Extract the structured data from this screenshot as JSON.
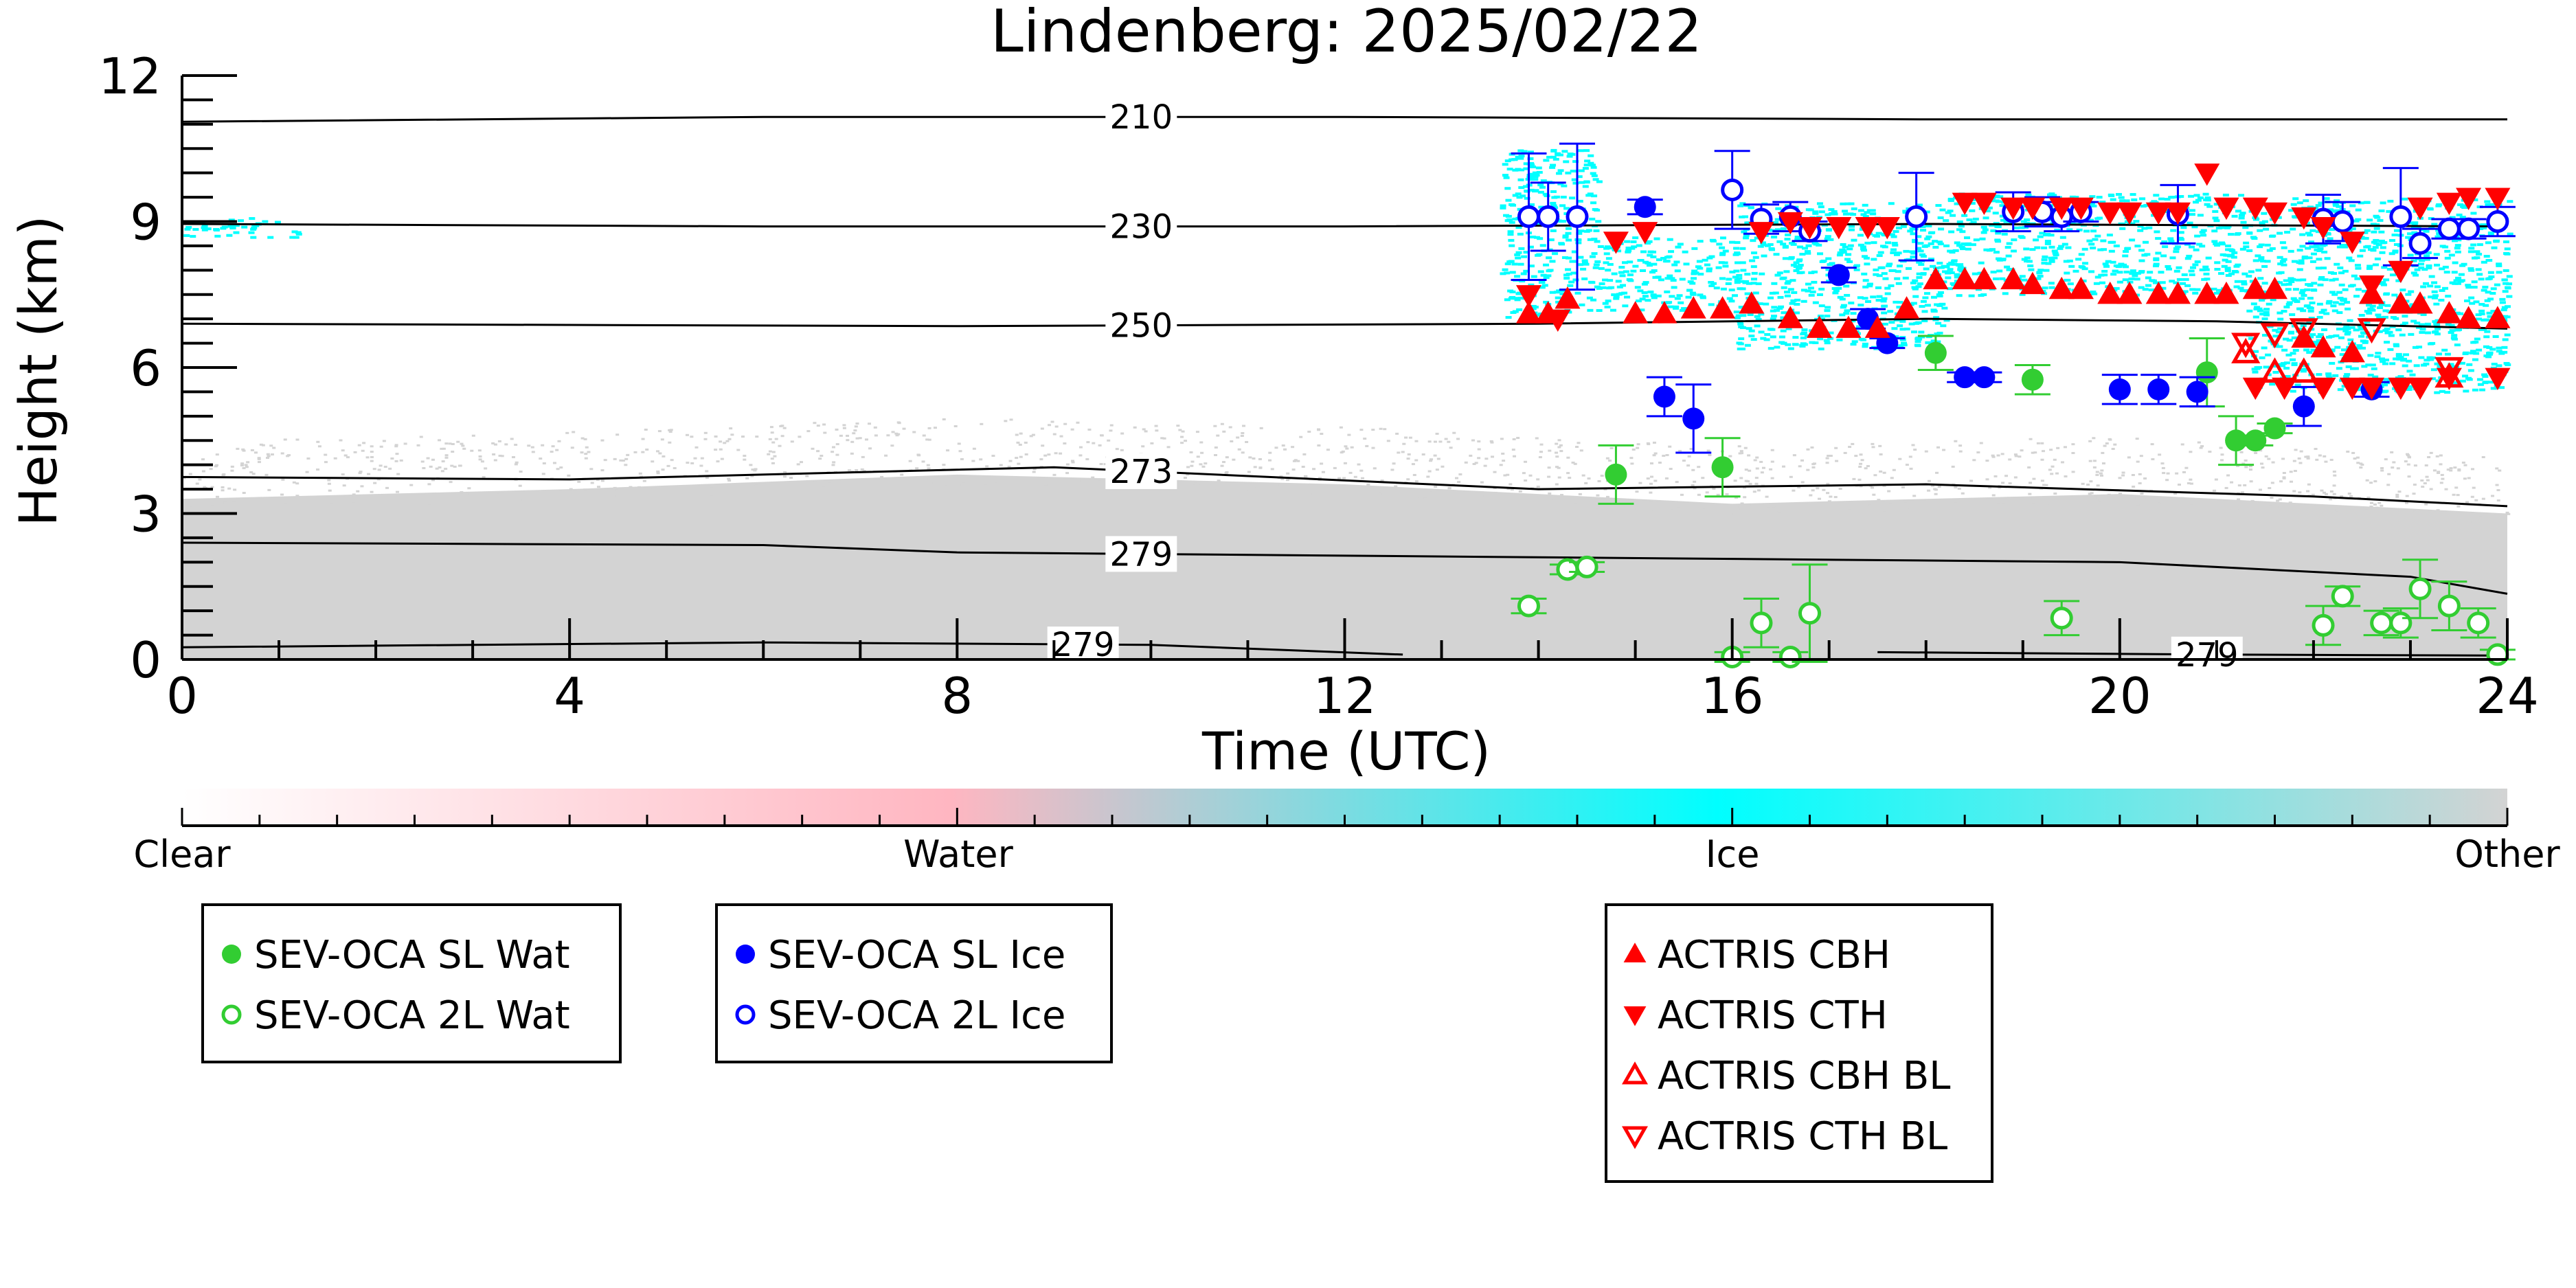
{
  "chart_data": {
    "type": "scatter",
    "title": "Lindenberg: 2025/02/22",
    "xlabel": "Time (UTC)",
    "ylabel": "Height (km)",
    "xlim": [
      0,
      24
    ],
    "ylim": [
      0,
      12
    ],
    "xticks": [
      "0",
      "4",
      "8",
      "12",
      "16",
      "20",
      "24"
    ],
    "yticks": [
      "0",
      "3",
      "6",
      "9",
      "12"
    ],
    "grid": false,
    "background_classes": [
      {
        "name": "Clear",
        "color": "#ffffff"
      },
      {
        "name": "Water",
        "color": "#ffb6c1"
      },
      {
        "name": "Ice",
        "color": "#00ffff"
      },
      {
        "name": "Other",
        "color": "#d3d3d3"
      }
    ],
    "other_field": {
      "description_free": true,
      "top_km": [
        [
          0,
          3.3
        ],
        [
          4,
          3.5
        ],
        [
          8,
          3.8
        ],
        [
          12,
          3.6
        ],
        [
          16,
          3.2
        ],
        [
          20,
          3.4
        ],
        [
          24,
          3.0
        ]
      ]
    },
    "ice_regions": [
      {
        "x0": 0.0,
        "x1": 1.2,
        "y0": 8.7,
        "y1": 9.1
      },
      {
        "x0": 13.6,
        "x1": 14.6,
        "y0": 7.0,
        "y1": 10.5
      },
      {
        "x0": 14.6,
        "x1": 16.0,
        "y0": 7.2,
        "y1": 8.7
      },
      {
        "x0": 16.0,
        "x1": 18.2,
        "y0": 6.4,
        "y1": 9.4
      },
      {
        "x0": 18.2,
        "x1": 21.3,
        "y0": 7.5,
        "y1": 9.6
      },
      {
        "x0": 21.3,
        "x1": 24.0,
        "y0": 5.5,
        "y1": 9.5
      }
    ],
    "contours": [
      {
        "label": "210",
        "label_x": 9.9,
        "points": [
          [
            0,
            11.05
          ],
          [
            6,
            11.15
          ],
          [
            12,
            11.15
          ],
          [
            18,
            11.1
          ],
          [
            24,
            11.1
          ]
        ]
      },
      {
        "label": "230",
        "label_x": 9.9,
        "points": [
          [
            0,
            8.95
          ],
          [
            6,
            8.9
          ],
          [
            12,
            8.9
          ],
          [
            18,
            8.95
          ],
          [
            24,
            8.9
          ]
        ]
      },
      {
        "label": "250",
        "label_x": 9.9,
        "points": [
          [
            0,
            6.9
          ],
          [
            8,
            6.85
          ],
          [
            14,
            6.9
          ],
          [
            18,
            7.0
          ],
          [
            21,
            6.95
          ],
          [
            24,
            6.8
          ]
        ]
      },
      {
        "label": "273",
        "label_x": 9.9,
        "points": [
          [
            0,
            3.75
          ],
          [
            4,
            3.7
          ],
          [
            9,
            3.95
          ],
          [
            14,
            3.5
          ],
          [
            18,
            3.6
          ],
          [
            22,
            3.35
          ],
          [
            24,
            3.15
          ]
        ]
      },
      {
        "label": "279",
        "label_x": 9.9,
        "points": [
          [
            0,
            2.4
          ],
          [
            6,
            2.35
          ],
          [
            8,
            2.2
          ],
          [
            14,
            2.1
          ],
          [
            20,
            2.0
          ],
          [
            23,
            1.7
          ],
          [
            24,
            1.35
          ]
        ]
      },
      {
        "label": "279",
        "label_x": 9.3,
        "points": [
          [
            0,
            0.25
          ],
          [
            6,
            0.35
          ],
          [
            10,
            0.3
          ],
          [
            12.6,
            0.1
          ]
        ]
      },
      {
        "label": "279",
        "label_x": 20.9,
        "points": [
          [
            17.5,
            0.15
          ],
          [
            21,
            0.1
          ],
          [
            24,
            0.08
          ]
        ]
      }
    ],
    "series": [
      {
        "name": "SEV-OCA SL Wat",
        "color": "#32cd32",
        "marker": "circle-filled",
        "x": [
          14.8,
          15.9,
          18.1,
          19.1,
          20.9,
          21.2,
          21.4,
          21.6
        ],
        "y": [
          3.8,
          3.95,
          6.3,
          5.75,
          5.9,
          4.5,
          4.5,
          4.75
        ],
        "yerr": [
          0.6,
          0.6,
          0.35,
          0.3,
          0.7,
          0.5,
          0.1,
          0.1
        ]
      },
      {
        "name": "SEV-OCA 2L Wat",
        "color": "#32cd32",
        "marker": "circle-open",
        "x": [
          13.9,
          14.3,
          14.5,
          16.0,
          16.3,
          16.6,
          16.8,
          19.4,
          22.1,
          22.3,
          22.7,
          22.9,
          23.1,
          23.4,
          23.7,
          23.9
        ],
        "y": [
          1.1,
          1.85,
          1.9,
          0.05,
          0.75,
          0.05,
          0.95,
          0.85,
          0.7,
          1.3,
          0.75,
          0.75,
          1.45,
          1.1,
          0.75,
          0.1
        ],
        "yerr": [
          0.15,
          0.1,
          0.1,
          0.1,
          0.5,
          0.1,
          1.0,
          0.35,
          0.4,
          0.2,
          0.25,
          0.3,
          0.6,
          0.5,
          0.3,
          0.1
        ]
      },
      {
        "name": "SEV-OCA SL Ice",
        "color": "#0000ff",
        "marker": "circle-filled",
        "x": [
          15.1,
          15.3,
          15.6,
          17.1,
          17.4,
          17.6,
          18.4,
          18.6,
          20.0,
          20.4,
          20.8,
          21.9,
          22.6
        ],
        "y": [
          9.3,
          5.4,
          4.95,
          7.9,
          7.0,
          6.5,
          5.8,
          5.8,
          5.55,
          5.55,
          5.5,
          5.2,
          5.55
        ],
        "yerr": [
          0.15,
          0.4,
          0.7,
          0.15,
          0.2,
          0.1,
          0.1,
          0.1,
          0.3,
          0.3,
          0.3,
          0.4,
          0.15
        ]
      },
      {
        "name": "SEV-OCA 2L Ice",
        "color": "#0000ff",
        "marker": "circle-open",
        "x": [
          13.9,
          14.1,
          14.4,
          16.0,
          16.3,
          16.6,
          16.8,
          17.9,
          18.9,
          19.2,
          19.4,
          19.6,
          20.6,
          22.1,
          22.3,
          22.9,
          23.1,
          23.4,
          23.6,
          23.9
        ],
        "y": [
          9.1,
          9.1,
          9.1,
          9.65,
          9.05,
          9.1,
          8.8,
          9.1,
          9.2,
          9.2,
          9.1,
          9.2,
          9.15,
          9.05,
          9.0,
          9.1,
          8.55,
          8.85,
          8.85,
          9.0
        ],
        "yerr": [
          1.3,
          0.7,
          1.5,
          0.8,
          0.3,
          0.3,
          0.2,
          0.9,
          0.4,
          0.3,
          0.3,
          0.2,
          0.6,
          0.5,
          0.4,
          1.0,
          0.3,
          0.2,
          0.2,
          0.3
        ]
      },
      {
        "name": "ACTRIS CBH",
        "color": "#ff0000",
        "marker": "triangle-up-filled",
        "x": [
          13.9,
          14.1,
          14.3,
          15.0,
          15.3,
          15.6,
          15.9,
          16.2,
          16.6,
          16.9,
          17.2,
          17.5,
          17.8,
          18.1,
          18.4,
          18.6,
          18.9,
          19.1,
          19.4,
          19.6,
          19.9,
          20.1,
          20.4,
          20.6,
          20.9,
          21.1,
          21.4,
          21.6,
          21.9,
          22.1,
          22.4,
          22.6,
          22.9,
          23.1,
          23.4,
          23.6,
          23.9
        ],
        "y": [
          7.1,
          7.1,
          7.4,
          7.1,
          7.1,
          7.2,
          7.2,
          7.3,
          7.0,
          6.8,
          6.8,
          6.8,
          7.2,
          7.8,
          7.8,
          7.8,
          7.8,
          7.7,
          7.6,
          7.6,
          7.5,
          7.5,
          7.5,
          7.5,
          7.5,
          7.5,
          7.6,
          7.6,
          6.6,
          6.4,
          6.3,
          7.5,
          7.3,
          7.3,
          7.1,
          7.0,
          7.0
        ],
        "yerr": []
      },
      {
        "name": "ACTRIS CTH",
        "color": "#ff0000",
        "marker": "triangle-down-filled",
        "x": [
          13.9,
          14.2,
          14.8,
          15.1,
          16.3,
          16.6,
          16.8,
          17.1,
          17.4,
          17.6,
          18.4,
          18.6,
          18.9,
          19.1,
          19.4,
          19.6,
          19.9,
          20.1,
          20.4,
          20.6,
          20.9,
          21.1,
          21.4,
          21.6,
          21.9,
          22.1,
          22.4,
          22.6,
          22.9,
          23.1,
          23.4,
          23.6,
          23.9,
          21.4,
          21.7,
          22.1,
          22.4,
          22.6,
          22.9,
          23.1,
          23.4,
          23.9
        ],
        "y": [
          7.5,
          7.0,
          8.6,
          8.8,
          8.8,
          9.0,
          8.9,
          8.9,
          8.9,
          8.9,
          9.4,
          9.4,
          9.3,
          9.3,
          9.3,
          9.3,
          9.2,
          9.2,
          9.2,
          9.2,
          10.0,
          9.3,
          9.3,
          9.2,
          9.1,
          8.9,
          8.6,
          7.7,
          8.0,
          9.3,
          9.4,
          9.5,
          9.5,
          5.6,
          5.6,
          5.6,
          5.6,
          5.6,
          5.6,
          5.6,
          5.8,
          5.8
        ],
        "yerr": []
      },
      {
        "name": "ACTRIS CBH BL",
        "color": "#ff0000",
        "marker": "triangle-up-open",
        "x": [
          21.3,
          21.6,
          21.9,
          23.4
        ],
        "y": [
          6.3,
          5.9,
          5.9,
          5.8
        ],
        "yerr": []
      },
      {
        "name": "ACTRIS CTH BL",
        "color": "#ff0000",
        "marker": "triangle-down-open",
        "x": [
          21.3,
          21.6,
          21.9,
          22.6,
          23.4
        ],
        "y": [
          6.5,
          6.7,
          6.8,
          6.8,
          6.0
        ],
        "yerr": []
      }
    ],
    "legend_groups": [
      [
        "SEV-OCA SL Wat",
        "SEV-OCA 2L Wat"
      ],
      [
        "SEV-OCA SL Ice",
        "SEV-OCA 2L Ice"
      ],
      [
        "ACTRIS CBH",
        "ACTRIS CTH",
        "ACTRIS CBH BL",
        "ACTRIS CTH BL"
      ]
    ]
  }
}
